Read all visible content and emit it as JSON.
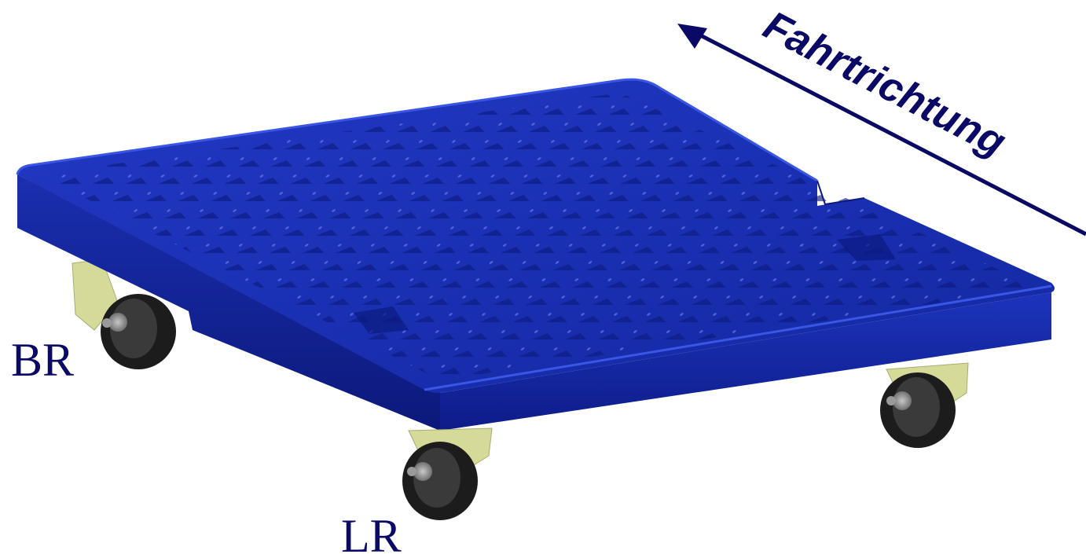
{
  "direction": {
    "label": "Fahrtrichtung"
  },
  "wheels": {
    "back_right": "BR",
    "left_rear": "LR"
  },
  "colors": {
    "dolly_body": "#1428a8",
    "dolly_dark": "#0a1470",
    "dolly_light": "#2a44d8",
    "bracket": "#d8dc9c",
    "tire": "#1e1e1e",
    "label": "#0a0a66"
  }
}
